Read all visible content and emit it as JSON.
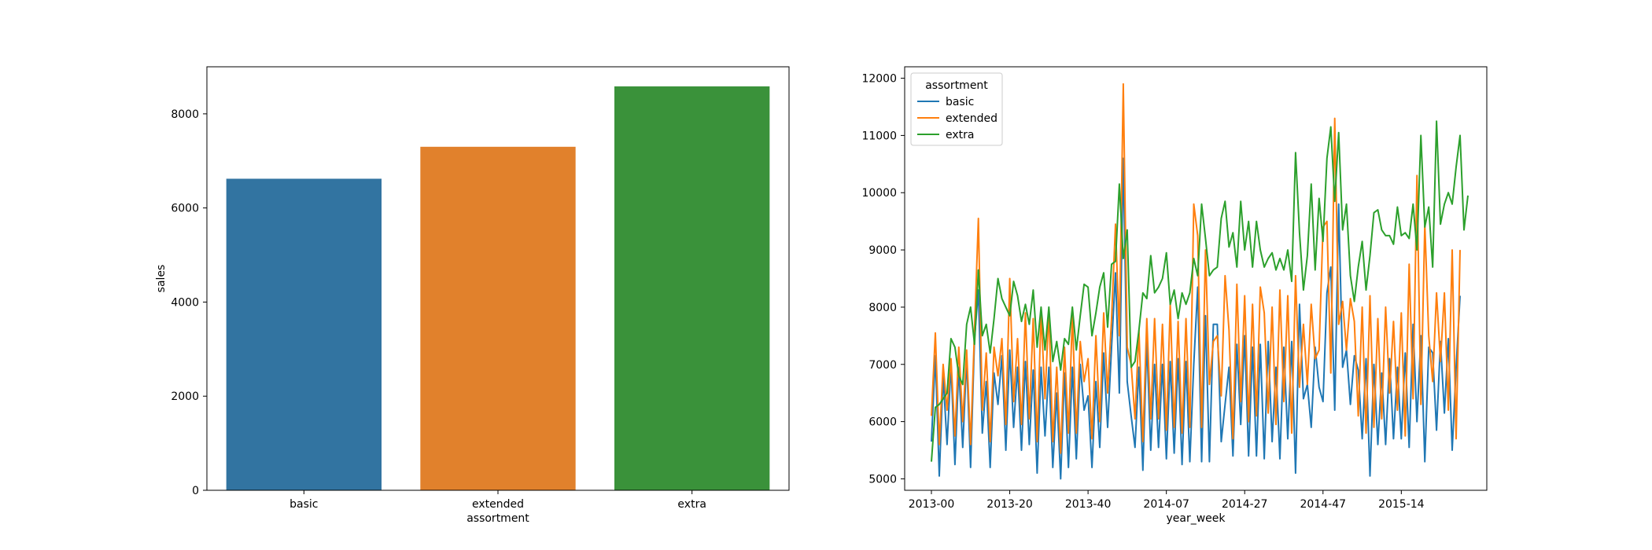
{
  "chart_data": [
    {
      "type": "bar",
      "categories": [
        "basic",
        "extended",
        "extra"
      ],
      "values": [
        6621,
        7300,
        8584
      ],
      "colors": [
        "#3274a1",
        "#e1812c",
        "#3a923a"
      ],
      "xlabel": "assortment",
      "ylabel": "sales",
      "ylim": [
        0,
        9000
      ],
      "yticks": [
        0,
        2000,
        4000,
        6000,
        8000
      ],
      "grid": false
    },
    {
      "type": "line",
      "xlabel": "year_week",
      "ylabel": "",
      "ylim": [
        4800,
        12200
      ],
      "yticks": [
        5000,
        6000,
        7000,
        8000,
        9000,
        10000,
        11000,
        12000
      ],
      "xtick_labels": [
        "2013-00",
        "2013-20",
        "2013-40",
        "2014-07",
        "2014-27",
        "2014-47",
        "2015-14"
      ],
      "xtick_index": [
        0,
        20,
        40,
        60,
        80,
        100,
        120
      ],
      "grid": false,
      "legend": {
        "title": "assortment",
        "placement": "upper-left"
      },
      "series": [
        {
          "name": "basic",
          "color": "#1f77b4",
          "values": [
            5650,
            7150,
            5050,
            6800,
            5600,
            7000,
            5250,
            6950,
            5550,
            7100,
            5200,
            7450,
            8300,
            5800,
            6700,
            5200,
            6850,
            6300,
            7150,
            5500,
            7250,
            5900,
            6950,
            5500,
            7050,
            5600,
            6900,
            5100,
            6950,
            5750,
            6950,
            5200,
            6500,
            5000,
            6850,
            5200,
            6950,
            5350,
            7000,
            6200,
            6450,
            5200,
            6700,
            5550,
            7200,
            5900,
            7300,
            8600,
            6500,
            10600,
            6700,
            6100,
            5550,
            6950,
            5150,
            7400,
            5500,
            7000,
            5550,
            7000,
            5350,
            7050,
            5450,
            7100,
            5250,
            7050,
            5300,
            7000,
            8350,
            5300,
            7850,
            5300,
            7700,
            7700,
            5650,
            6300,
            6950,
            5400,
            7350,
            5950,
            7500,
            5400,
            7300,
            5400,
            7350,
            5350,
            7400,
            5650,
            6950,
            5350,
            7300,
            5700,
            7400,
            5100,
            8050,
            6400,
            6650,
            5900,
            7300,
            6600,
            6350,
            8250,
            8700,
            6200,
            9800,
            6950,
            7250,
            6300,
            7150,
            6900,
            5700,
            7100,
            5050,
            7000,
            5600,
            6850,
            5600,
            7100,
            5700,
            6950,
            5700,
            7200,
            5550,
            7700,
            6000,
            7500,
            5300,
            7300,
            7200,
            5850,
            7400,
            6150,
            7450,
            5500,
            6950,
            8200
          ],
          "values_note": ""
        },
        {
          "name": "extended",
          "color": "#ff7f0e",
          "values": [
            6100,
            7550,
            5600,
            7000,
            6200,
            7100,
            5750,
            7300,
            6000,
            7250,
            5600,
            7600,
            9550,
            6200,
            7200,
            5650,
            7300,
            6800,
            7450,
            5950,
            8500,
            6350,
            7450,
            5950,
            7900,
            6050,
            7800,
            5650,
            7900,
            6400,
            7950,
            5650,
            6950,
            5450,
            7300,
            5800,
            7850,
            5800,
            7400,
            6700,
            7100,
            5700,
            7500,
            6000,
            7900,
            6500,
            7800,
            9450,
            7500,
            11900,
            7300,
            7000,
            6050,
            7600,
            5650,
            7800,
            6050,
            7800,
            6050,
            7700,
            5850,
            8050,
            5900,
            7750,
            5800,
            7800,
            5900,
            9800,
            9250,
            5900,
            9000,
            6650,
            7400,
            7500,
            6450,
            8550,
            7600,
            5700,
            8400,
            6350,
            8200,
            6000,
            8050,
            6100,
            8350,
            7900,
            6150,
            8000,
            5950,
            8300,
            6350,
            8200,
            5800,
            8550,
            6600,
            7700,
            6650,
            8050,
            7100,
            7250,
            9400,
            9500,
            6850,
            11300,
            7700,
            8100,
            7250,
            8150,
            7750,
            6100,
            8000,
            5800,
            8200,
            5900,
            7800,
            6050,
            8000,
            6500,
            7750,
            6200,
            7900,
            5750,
            8750,
            6400,
            10300,
            6300,
            9450,
            7500,
            6700,
            8250,
            7050,
            8250,
            6200,
            9000,
            5700,
            9000
          ],
          "values_note": ""
        },
        {
          "name": "extra",
          "color": "#2ca02c",
          "values": [
            5300,
            6250,
            6300,
            6400,
            6500,
            7450,
            7300,
            6800,
            6650,
            7700,
            8000,
            7350,
            8650,
            7500,
            7700,
            7200,
            7800,
            8500,
            8150,
            8000,
            7850,
            8450,
            8200,
            7750,
            8050,
            7700,
            8300,
            7300,
            8000,
            7250,
            8000,
            7050,
            7400,
            6900,
            7450,
            7350,
            8000,
            7250,
            7850,
            8400,
            8350,
            7500,
            7900,
            8350,
            8600,
            7650,
            8750,
            8800,
            10150,
            8850,
            9350,
            6950,
            7050,
            7600,
            8250,
            8150,
            8900,
            8250,
            8350,
            8500,
            8950,
            8050,
            8300,
            7800,
            8250,
            8050,
            8250,
            8850,
            8550,
            9800,
            9200,
            8550,
            8650,
            8700,
            9550,
            9850,
            9050,
            9300,
            8700,
            9850,
            9000,
            9500,
            8700,
            9500,
            9000,
            8700,
            8850,
            8950,
            8650,
            8850,
            8650,
            9000,
            8450,
            10700,
            9300,
            8300,
            8900,
            10150,
            8650,
            9900,
            9150,
            10600,
            11150,
            9850,
            11050,
            9350,
            9800,
            8550,
            8100,
            8700,
            9150,
            8300,
            8900,
            9650,
            9700,
            9350,
            9250,
            9250,
            9100,
            9750,
            9250,
            9300,
            9200,
            9800,
            9000,
            11000,
            9400,
            9750,
            8700,
            11250,
            9450,
            9800,
            10000,
            9800,
            10450,
            11000,
            9350,
            9950
          ]
        }
      ]
    }
  ]
}
